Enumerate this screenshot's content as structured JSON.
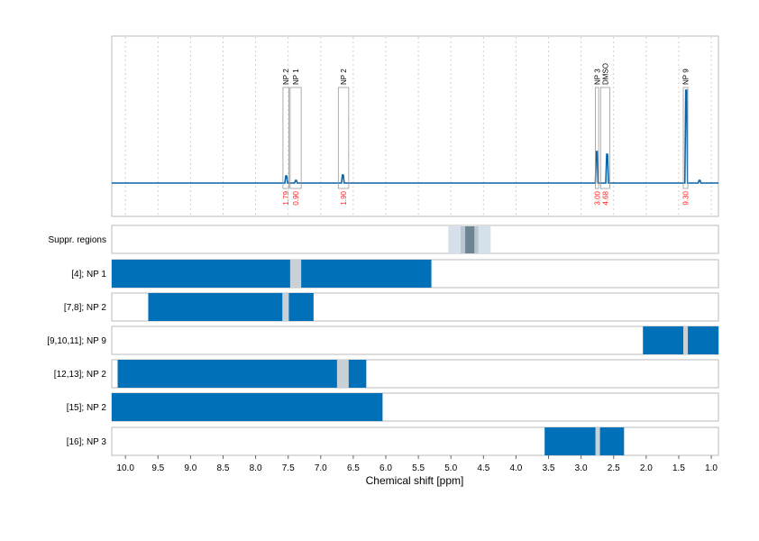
{
  "chart_data": {
    "type": "line",
    "xlabel": "Chemical shift [ppm]",
    "xlim": [
      10.21,
      0.89
    ],
    "x_ticks": [
      "10.0",
      "9.5",
      "9.0",
      "8.5",
      "8.0",
      "7.5",
      "7.0",
      "6.5",
      "6.0",
      "5.5",
      "5.0",
      "4.5",
      "4.0",
      "3.5",
      "3.0",
      "2.5",
      "2.0",
      "1.5",
      "1.0"
    ],
    "grid": "vertical dotted",
    "spectrum": {
      "baseline": 0,
      "peaks": [
        {
          "ppm": 7.53,
          "height": 8
        },
        {
          "ppm": 7.38,
          "height": 3
        },
        {
          "ppm": 6.66,
          "height": 9
        },
        {
          "ppm": 2.76,
          "height": 35
        },
        {
          "ppm": 2.6,
          "height": 32
        },
        {
          "ppm": 1.385,
          "height": 103
        },
        {
          "ppm": 1.18,
          "height": 3
        }
      ],
      "ymax": 110
    },
    "annotations": [
      {
        "label": "NP 2",
        "from": 7.58,
        "to": 7.49,
        "integral": "1.79"
      },
      {
        "label": "NP 1",
        "from": 7.47,
        "to": 7.3,
        "integral": "0.90"
      },
      {
        "label": "NP 2",
        "from": 6.73,
        "to": 6.57,
        "integral": "1.90"
      },
      {
        "label": "NP 3",
        "from": 2.78,
        "to": 2.73,
        "integral": "3.00"
      },
      {
        "label": "DMSO",
        "from": 2.7,
        "to": 2.56,
        "integral": "4.68"
      },
      {
        "label": "NP 9",
        "from": 1.43,
        "to": 1.36,
        "integral": "9.30"
      }
    ],
    "suppression": {
      "label": "Suppr. regions",
      "bands": [
        {
          "from": 5.04,
          "to": 4.39,
          "level": 1
        },
        {
          "from": 4.85,
          "to": 4.58,
          "level": 2
        },
        {
          "from": 4.78,
          "to": 4.64,
          "level": 3
        }
      ]
    },
    "rows": [
      {
        "label": "[4]; NP 1",
        "from": 10.21,
        "to": 5.3,
        "gap": [
          7.47,
          7.3
        ]
      },
      {
        "label": "[7,8]; NP 2",
        "from": 9.65,
        "to": 7.11,
        "gap": [
          7.59,
          7.49
        ]
      },
      {
        "label": "[9,10,11]; NP 9",
        "from": 2.05,
        "to": 0.89,
        "gap": [
          1.43,
          1.36
        ]
      },
      {
        "label": "[12,13]; NP 2",
        "from": 10.12,
        "to": 6.3,
        "gap": [
          6.75,
          6.57
        ]
      },
      {
        "label": "[15]; NP 2",
        "from": 10.21,
        "to": 6.05,
        "gap": null
      },
      {
        "label": "[16]; NP 3",
        "from": 3.56,
        "to": 2.34,
        "gap": [
          2.78,
          2.71
        ]
      }
    ],
    "colors": {
      "bar": "#0070b8",
      "gap": "#c9d1d7",
      "spectrum": "#0a64a8",
      "integral": "#ff2020",
      "supp1": "#d5e0ea",
      "supp2": "#b7c6d0",
      "supp3": "#6d8593"
    }
  }
}
